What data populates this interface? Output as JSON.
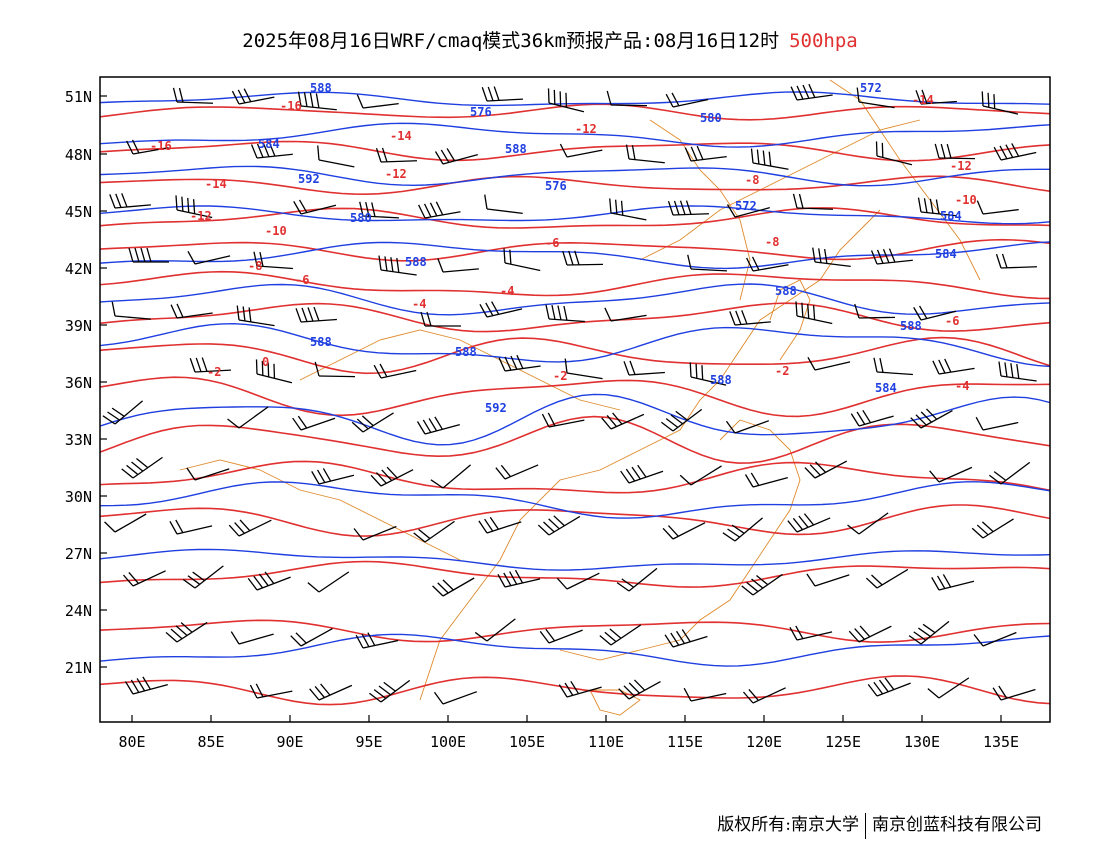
{
  "title": {
    "text": "2025年08月16日WRF/cmaq模式36km预报产品:08月16日12时",
    "level": "500hpa"
  },
  "axes": {
    "lat_labels": [
      "51N",
      "48N",
      "45N",
      "42N",
      "39N",
      "36N",
      "33N",
      "30N",
      "27N",
      "24N",
      "21N"
    ],
    "lon_labels": [
      "80E",
      "85E",
      "90E",
      "95E",
      "100E",
      "105E",
      "110E",
      "115E",
      "120E",
      "125E",
      "130E",
      "135E"
    ]
  },
  "colors": {
    "geopotential": "#1f3fe0",
    "temperature": "#e03030",
    "boundary": "#e08a2a",
    "wind": "#000000"
  },
  "geopotential_labels": [
    "588",
    "572",
    "576",
    "580",
    "584",
    "588",
    "592",
    "576",
    "572",
    "580",
    "584",
    "588",
    "584",
    "588",
    "588",
    "588",
    "588",
    "588",
    "592",
    "584"
  ],
  "temperature_labels": [
    "-16",
    "-16",
    "-14",
    "-12",
    "-10",
    "-8",
    "-6",
    "-4",
    "-2",
    "0",
    "-12",
    "-14",
    "-12",
    "-8",
    "-6",
    "-4",
    "-2",
    "-10",
    "-12",
    "-14",
    "-2",
    "-4",
    "-6",
    "-8"
  ],
  "footer": {
    "left": "版权所有:南京大学",
    "right": "南京创蓝科技有限公司"
  }
}
